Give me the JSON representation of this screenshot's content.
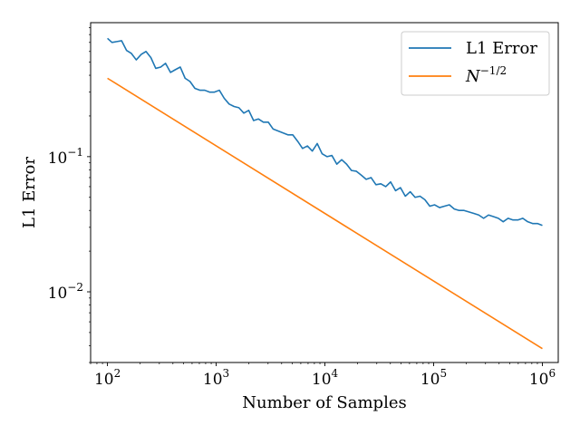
{
  "chart_data": {
    "type": "line",
    "xlabel": "Number of Samples",
    "ylabel": "L1 Error",
    "xscale": "log",
    "yscale": "log",
    "xlim": [
      70,
      1400000
    ],
    "ylim": [
      0.003,
      0.98
    ],
    "grid": false,
    "legend_position": "top-right",
    "x_ticks": [
      {
        "value": 100,
        "base": "10",
        "exp": "2"
      },
      {
        "value": 1000,
        "base": "10",
        "exp": "3"
      },
      {
        "value": 10000,
        "base": "10",
        "exp": "4"
      },
      {
        "value": 100000,
        "base": "10",
        "exp": "5"
      },
      {
        "value": 1000000,
        "base": "10",
        "exp": "6"
      }
    ],
    "y_ticks": [
      {
        "value": 0.1,
        "base": "10",
        "exp": "−1"
      },
      {
        "value": 0.01,
        "base": "10",
        "exp": "−2"
      }
    ],
    "series": [
      {
        "name": "L1 Error",
        "color": "#1f77b4",
        "x": [
          100,
          110,
          122,
          135,
          150,
          166,
          184,
          204,
          226,
          251,
          278,
          309,
          342,
          380,
          421,
          467,
          518,
          574,
          637,
          707,
          784,
          869,
          964,
          1069,
          1186,
          1315,
          1459,
          1618,
          1795,
          1991,
          2208,
          2449,
          2716,
          3013,
          3342,
          3707,
          4112,
          4561,
          5059,
          5612,
          6225,
          6905,
          7659,
          8496,
          9424,
          10453,
          11594,
          12860,
          14264,
          15822,
          17551,
          19468,
          21594,
          23953,
          26569,
          29471,
          32690,
          36260,
          40220,
          44613,
          49486,
          54891,
          60886,
          67536,
          74912,
          83094,
          92170,
          102237,
          113404,
          125790,
          139529,
          154769,
          171673,
          190423,
          211221,
          234291,
          259881,
          288265,
          319750,
          354673,
          393411,
          436380,
          484041,
          536909,
          595552,
          660599,
          732750,
          812782,
          901560,
          1000000
        ],
        "y": [
          0.75,
          0.7,
          0.71,
          0.72,
          0.61,
          0.58,
          0.52,
          0.57,
          0.6,
          0.54,
          0.45,
          0.46,
          0.49,
          0.42,
          0.44,
          0.46,
          0.38,
          0.36,
          0.32,
          0.31,
          0.31,
          0.3,
          0.3,
          0.31,
          0.27,
          0.245,
          0.235,
          0.23,
          0.21,
          0.22,
          0.185,
          0.19,
          0.18,
          0.18,
          0.16,
          0.155,
          0.15,
          0.145,
          0.145,
          0.13,
          0.115,
          0.12,
          0.11,
          0.125,
          0.105,
          0.1,
          0.102,
          0.088,
          0.095,
          0.088,
          0.079,
          0.078,
          0.073,
          0.068,
          0.07,
          0.062,
          0.063,
          0.06,
          0.065,
          0.056,
          0.059,
          0.051,
          0.055,
          0.05,
          0.051,
          0.048,
          0.043,
          0.044,
          0.042,
          0.043,
          0.044,
          0.041,
          0.04,
          0.04,
          0.039,
          0.038,
          0.037,
          0.035,
          0.037,
          0.036,
          0.035,
          0.033,
          0.035,
          0.034,
          0.034,
          0.035,
          0.033,
          0.032,
          0.032,
          0.031
        ]
      },
      {
        "name": "N^{-1/2}",
        "color": "#ff7f0e",
        "x": [
          100,
          1000000
        ],
        "y": [
          0.38,
          0.0038
        ]
      }
    ],
    "legend": [
      {
        "text": "L1 Error",
        "color": "#1f77b4"
      },
      {
        "text": "N",
        "sup": "−1/2",
        "color": "#ff7f0e"
      }
    ]
  }
}
